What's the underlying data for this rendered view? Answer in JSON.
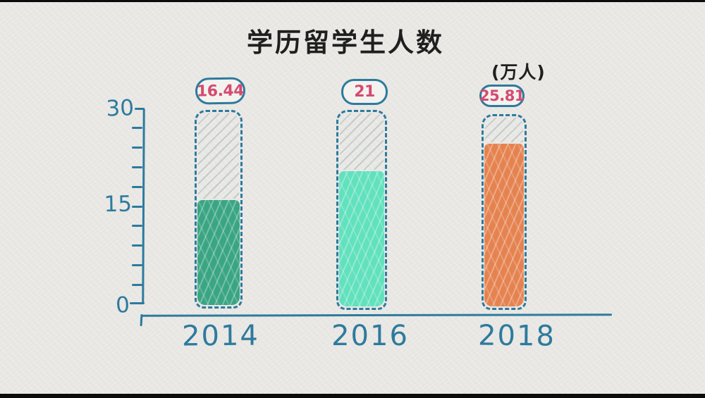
{
  "title": "学历留学生人数",
  "unit_label": "(万人)",
  "y_axis": {
    "labels": [
      "30",
      "15",
      "0"
    ]
  },
  "chart_data": {
    "type": "bar",
    "title": "学历留学生人数",
    "unit": "万人",
    "categories": [
      "2014",
      "2016",
      "2018"
    ],
    "values": [
      16.44,
      21,
      25.81
    ],
    "value_labels": [
      "16.44",
      "21",
      "25.81"
    ],
    "ylim": [
      0,
      30
    ],
    "yticks": [
      0,
      15,
      30
    ],
    "minor_tick_step": 3,
    "grid": false,
    "legend": false,
    "style": "hand-drawn",
    "bar_colors": [
      "#3aa583",
      "#61e1bd",
      "#e58350"
    ],
    "outline_color": "#2e7a9e",
    "axis_color": "#2e7a9e",
    "value_label_color": "#d44a70",
    "background_color": "#e9e8e4"
  }
}
